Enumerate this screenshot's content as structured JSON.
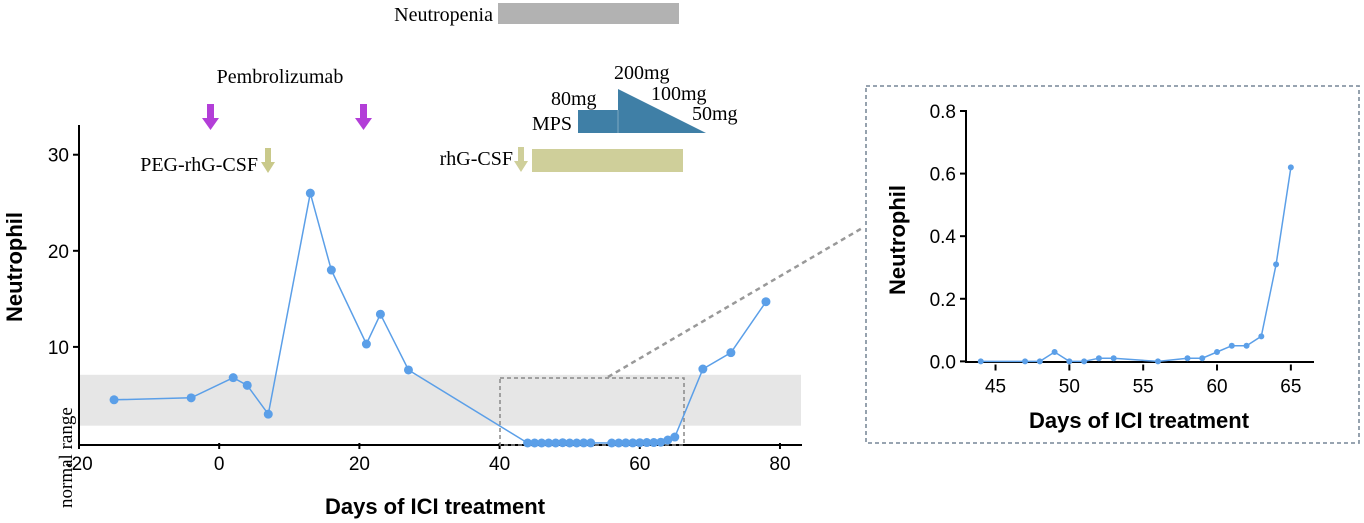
{
  "chart_data": [
    {
      "id": "main",
      "type": "line",
      "xlabel": "Days of ICI treatment",
      "ylabel": "Neutrophil",
      "xlim": [
        -20,
        83
      ],
      "ylim": [
        0,
        32
      ],
      "xticks": [
        "-20",
        "0",
        "20",
        "40",
        "60",
        "80"
      ],
      "yticks": [
        "10",
        "20",
        "30"
      ],
      "normal_range_label": "normal range",
      "normal_range": [
        1.8,
        7.1
      ],
      "series": [
        {
          "name": "Neutrophil",
          "color": "#5b9fe8",
          "x": [
            -15,
            -4,
            2,
            4,
            7,
            13,
            16,
            21,
            23,
            27,
            44,
            45,
            46,
            47,
            48,
            49,
            50,
            51,
            52,
            53,
            56,
            57,
            58,
            59,
            60,
            61,
            62,
            63,
            64,
            65,
            69,
            73,
            78
          ],
          "y": [
            4.5,
            4.7,
            6.8,
            6.0,
            3.0,
            26.0,
            18.0,
            10.3,
            13.4,
            7.6,
            0.0,
            0.0,
            0.0,
            0.0,
            0.0,
            0.03,
            0.0,
            0.0,
            0.01,
            0.01,
            0.0,
            0.0,
            0.01,
            0.01,
            0.03,
            0.05,
            0.05,
            0.08,
            0.31,
            0.62,
            7.7,
            9.4,
            14.7
          ]
        }
      ],
      "annotations": {
        "neutropenia": {
          "label": "Neutropenia",
          "color": "#b2b2b2"
        },
        "pembrolizumab": {
          "label": "Pembrolizumab",
          "color": "#b33ed8"
        },
        "peg": {
          "label": "PEG-rhG-CSF",
          "color": "#c9c98a"
        },
        "rhg": {
          "label": "rhG-CSF",
          "color": "#cfcf9a"
        },
        "mps": {
          "label": "MPS",
          "color": "#3f7fa6",
          "doses": [
            "80mg",
            "200mg",
            "100mg",
            "50mg"
          ]
        }
      }
    },
    {
      "id": "inset",
      "type": "line",
      "xlabel": "Days of ICI treatment",
      "ylabel": "Neutrophil",
      "xlim": [
        43,
        66.5
      ],
      "ylim": [
        -0.01,
        0.8
      ],
      "xticks": [
        "45",
        "50",
        "55",
        "60",
        "65"
      ],
      "yticks": [
        "0.0",
        "0.2",
        "0.4",
        "0.6",
        "0.8"
      ],
      "series": [
        {
          "name": "Neutrophil",
          "color": "#5b9fe8",
          "x": [
            44,
            47,
            48,
            49,
            50,
            51,
            52,
            53,
            56,
            58,
            59,
            60,
            61,
            62,
            63,
            64,
            65
          ],
          "y": [
            0.0,
            0.0,
            0.0,
            0.03,
            0.0,
            0.0,
            0.01,
            0.01,
            0.0,
            0.01,
            0.01,
            0.03,
            0.05,
            0.05,
            0.08,
            0.31,
            0.62
          ]
        }
      ]
    }
  ]
}
